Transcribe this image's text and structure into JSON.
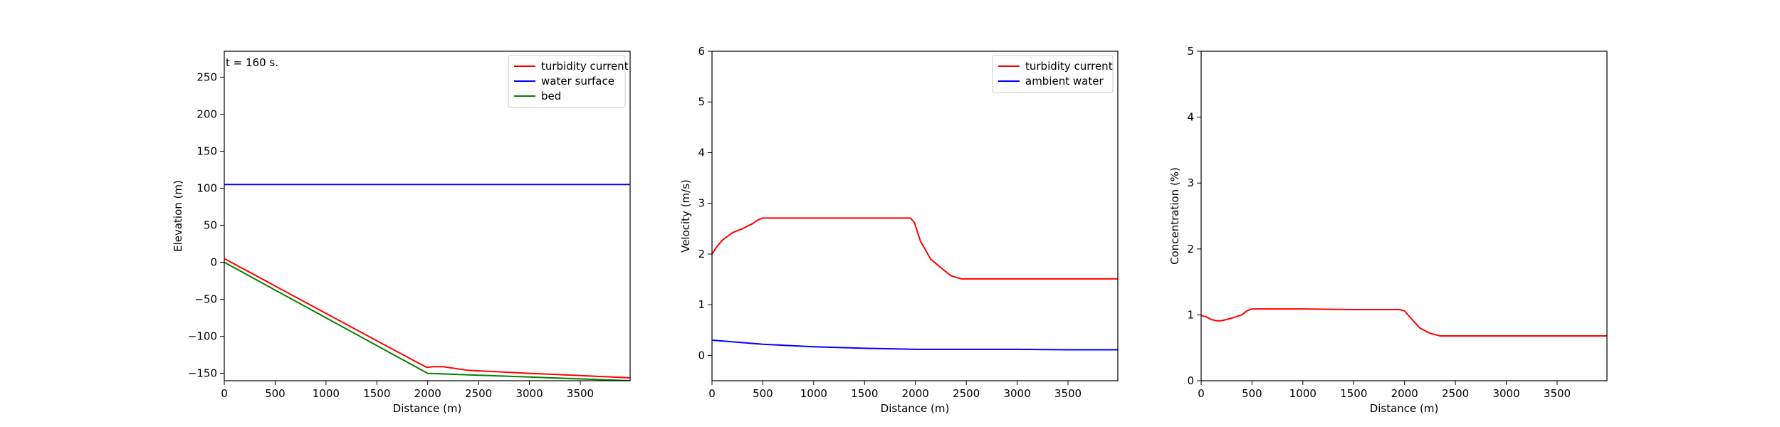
{
  "chart_data": [
    {
      "type": "line",
      "annotation": "t =  160 s.",
      "xlabel": "Distance (m)",
      "ylabel": "Elevation (m)",
      "xlim": [
        0,
        3990
      ],
      "ylim": [
        -160,
        285
      ],
      "xticks": [
        0,
        500,
        1000,
        1500,
        2000,
        2500,
        3000,
        3500
      ],
      "yticks": [
        -150,
        -100,
        -50,
        0,
        50,
        100,
        150,
        200,
        250
      ],
      "ytick_labels": [
        "−150",
        "−100",
        "−50",
        "0",
        "50",
        "100",
        "150",
        "200",
        "250"
      ],
      "legend": "top-right",
      "grid": false,
      "series": [
        {
          "name": "turbidity current",
          "color": "#ff0000",
          "x": [
            0,
            500,
            1000,
            1500,
            1990,
            2050,
            2150,
            2250,
            2400,
            2700,
            3000,
            3500,
            3990
          ],
          "y": [
            5,
            -32,
            -69,
            -106,
            -142,
            -141,
            -141,
            -143,
            -146,
            -148,
            -150,
            -153,
            -156
          ]
        },
        {
          "name": "water surface",
          "color": "#0000ff",
          "x": [
            0,
            3990
          ],
          "y": [
            105,
            105
          ]
        },
        {
          "name": "bed",
          "color": "#008000",
          "x": [
            0,
            2000,
            2500,
            3000,
            3500,
            3990
          ],
          "y": [
            0,
            -150,
            -152.5,
            -155,
            -157.5,
            -160
          ]
        }
      ]
    },
    {
      "type": "line",
      "xlabel": "Distance (m)",
      "ylabel": "Velocity (m/s)",
      "xlim": [
        0,
        3990
      ],
      "ylim": [
        -0.5,
        6
      ],
      "xticks": [
        0,
        500,
        1000,
        1500,
        2000,
        2500,
        3000,
        3500
      ],
      "yticks": [
        0,
        1,
        2,
        3,
        4,
        5,
        6
      ],
      "legend": "top-right",
      "grid": false,
      "series": [
        {
          "name": "turbidity current",
          "color": "#ff0000",
          "x": [
            0,
            50,
            100,
            200,
            300,
            400,
            450,
            500,
            600,
            1000,
            1500,
            1950,
            1990,
            2050,
            2150,
            2250,
            2350,
            2450,
            2500,
            3000,
            3500,
            3990
          ],
          "y": [
            2.0,
            2.15,
            2.27,
            2.42,
            2.5,
            2.6,
            2.67,
            2.71,
            2.71,
            2.71,
            2.71,
            2.71,
            2.62,
            2.25,
            1.9,
            1.73,
            1.57,
            1.51,
            1.51,
            1.51,
            1.51,
            1.51
          ]
        },
        {
          "name": "ambient water",
          "color": "#0000ff",
          "x": [
            0,
            500,
            1000,
            1500,
            2000,
            2500,
            3000,
            3500,
            3990
          ],
          "y": [
            0.3,
            0.22,
            0.17,
            0.14,
            0.12,
            0.12,
            0.12,
            0.11,
            0.11
          ]
        }
      ]
    },
    {
      "type": "line",
      "xlabel": "Distance (m)",
      "ylabel": "Concentration (%)",
      "xlim": [
        0,
        3990
      ],
      "ylim": [
        0,
        5
      ],
      "xticks": [
        0,
        500,
        1000,
        1500,
        2000,
        2500,
        3000,
        3500
      ],
      "yticks": [
        0,
        1,
        2,
        3,
        4,
        5
      ],
      "legend": "none",
      "grid": false,
      "series": [
        {
          "color": "#ff0000",
          "x": [
            0,
            50,
            100,
            150,
            200,
            300,
            400,
            450,
            500,
            1000,
            1500,
            1950,
            2000,
            2050,
            2150,
            2250,
            2350,
            2500,
            3000,
            3500,
            3990
          ],
          "y": [
            0.99,
            0.97,
            0.93,
            0.91,
            0.91,
            0.95,
            1.0,
            1.06,
            1.09,
            1.09,
            1.08,
            1.08,
            1.06,
            0.97,
            0.8,
            0.72,
            0.68,
            0.68,
            0.68,
            0.68,
            0.68
          ]
        }
      ]
    }
  ]
}
